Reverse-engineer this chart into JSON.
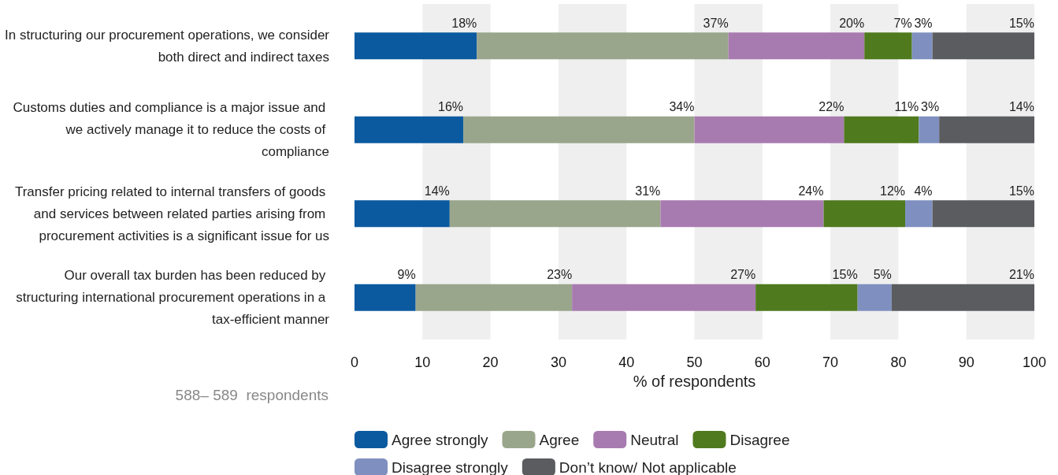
{
  "chart_data": {
    "type": "bar",
    "orientation": "horizontal",
    "stacked": true,
    "categories": [
      "In structuring our procurement operations, we consider both direct and indirect taxes",
      "Customs duties and compliance is a major issue and we actively manage it to reduce the costs of compliance",
      "Transfer pricing related to internal transfers of goods and services between related parties arising from procurement activities is a significant issue for us",
      "Our overall tax burden has been reduced by structuring international procurement operations in a tax-efficient manner"
    ],
    "series": [
      {
        "name": "Agree strongly",
        "color": "#0b5aa0",
        "values": [
          18,
          16,
          14,
          9
        ],
        "value_labels": [
          "18%",
          "16%",
          "14%",
          "9%"
        ]
      },
      {
        "name": "Agree",
        "color": "#9aa68c",
        "values": [
          37,
          34,
          31,
          23
        ],
        "value_labels": [
          "37%",
          "34%",
          "31%",
          "23%"
        ]
      },
      {
        "name": "Neutral",
        "color": "#a87bb0",
        "values": [
          20,
          22,
          24,
          27
        ],
        "value_labels": [
          "20%",
          "22%",
          "24%",
          "27%"
        ]
      },
      {
        "name": "Disagree",
        "color": "#4f7a1e",
        "values": [
          7,
          11,
          12,
          15
        ],
        "value_labels": [
          "7%",
          "11%",
          "12%",
          "15%"
        ]
      },
      {
        "name": "Disagree strongly",
        "color": "#7f90c0",
        "values": [
          3,
          3,
          4,
          5
        ],
        "value_labels": [
          "3%",
          "3%",
          "4%",
          "5%"
        ]
      },
      {
        "name": "Don’t know/ Not applicable",
        "color": "#5a5c60",
        "values": [
          15,
          14,
          15,
          21
        ],
        "value_labels": [
          "15%",
          "14%",
          "15%",
          "21%"
        ]
      }
    ],
    "xlabel": "% of respondents",
    "xlim": [
      0,
      100
    ],
    "xticks": [
      0,
      10,
      20,
      30,
      40,
      50,
      60,
      70,
      80,
      90,
      100
    ],
    "bands": [
      {
        "axis": "x",
        "from": 10,
        "to": 20,
        "color": "#efefef"
      },
      {
        "axis": "x",
        "from": 30,
        "to": 40,
        "color": "#efefef"
      },
      {
        "axis": "x",
        "from": 50,
        "to": 60,
        "color": "#efefef"
      },
      {
        "axis": "x",
        "from": 70,
        "to": 80,
        "color": "#efefef"
      },
      {
        "axis": "x",
        "from": 90,
        "to": 100,
        "color": "#efefef"
      }
    ],
    "annotations": [
      "588– 589  respondents"
    ],
    "grid": false,
    "legend": "bottom"
  }
}
